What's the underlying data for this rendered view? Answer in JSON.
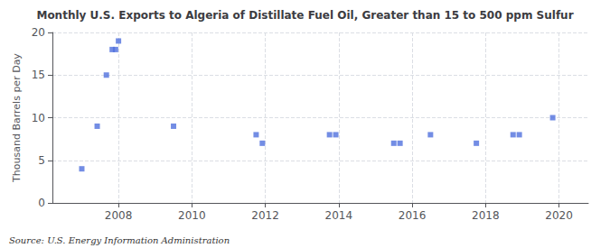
{
  "chart_data": {
    "type": "scatter",
    "title": "Monthly U.S. Exports to Algeria of Distillate Fuel Oil, Greater than 15 to 500 ppm Sulfur",
    "ylabel": "Thousand Barrels per Day",
    "annotations": [
      "Source: U.S. Energy Information Administration"
    ],
    "x": [
      2007.0,
      2007.42,
      2007.67,
      2007.83,
      2007.92,
      2008.0,
      2009.5,
      2011.75,
      2011.92,
      2013.75,
      2013.92,
      2015.5,
      2015.67,
      2016.5,
      2017.75,
      2018.75,
      2018.92,
      2019.83
    ],
    "values": [
      4.0,
      9.0,
      15.0,
      18.0,
      18.0,
      19.0,
      9.0,
      8.0,
      7.0,
      8.0,
      8.0,
      7.0,
      7.0,
      8.0,
      7.0,
      8.0,
      8.0,
      10.0
    ],
    "marker": "square",
    "xlim": [
      2006.2,
      2020.8
    ],
    "xticks": [
      2008,
      2010,
      2012,
      2014,
      2016,
      2018,
      2020
    ],
    "ylim": [
      0,
      20
    ],
    "yticks": [
      0,
      5,
      10,
      15,
      20
    ],
    "grid": true
  }
}
